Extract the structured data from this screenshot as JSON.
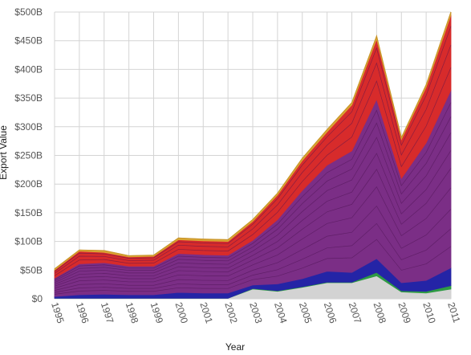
{
  "chart_data": {
    "type": "area",
    "stacked": true,
    "xlabel": "Year",
    "ylabel": "Export Value",
    "x": [
      1995,
      1996,
      1997,
      1998,
      1999,
      2000,
      2001,
      2002,
      2003,
      2004,
      2005,
      2006,
      2007,
      2008,
      2009,
      2010,
      2011
    ],
    "y_ticks": [
      "$0",
      "$50B",
      "$100B",
      "$150B",
      "$200B",
      "$250B",
      "$300B",
      "$350B",
      "$400B",
      "$450B",
      "$500B"
    ],
    "ylim": [
      0,
      500
    ],
    "grid": true,
    "legend": "none",
    "series": [
      {
        "color": "#d3d3d3",
        "values": [
          1,
          1,
          1,
          1,
          1,
          1,
          1,
          1,
          17,
          13,
          20,
          28,
          28,
          40,
          12,
          10,
          17
        ]
      },
      {
        "color": "#2e9a44",
        "values": [
          0,
          0,
          0,
          0,
          0,
          0,
          0,
          0,
          1,
          1,
          1,
          1,
          1,
          6,
          2,
          3,
          6
        ]
      },
      {
        "color": "#2424a6",
        "values": [
          3,
          6,
          7,
          6,
          6,
          10,
          9,
          9,
          6,
          12,
          14,
          19,
          17,
          24,
          14,
          19,
          31
        ]
      },
      {
        "color": "#7b2e86",
        "values": [
          32,
          54,
          55,
          50,
          50,
          68,
          67,
          66,
          78,
          112,
          154,
          185,
          212,
          278,
          182,
          240,
          310
        ]
      },
      {
        "color": "#d72b2b",
        "values": [
          14,
          22,
          18,
          16,
          17,
          24,
          24,
          24,
          33,
          43,
          52,
          58,
          80,
          105,
          68,
          97,
          131
        ]
      },
      {
        "color": "#d9a634",
        "values": [
          2,
          2,
          3,
          2,
          2,
          3,
          3,
          3,
          3,
          3,
          4,
          4,
          4,
          5,
          3,
          4,
          5
        ]
      }
    ]
  }
}
